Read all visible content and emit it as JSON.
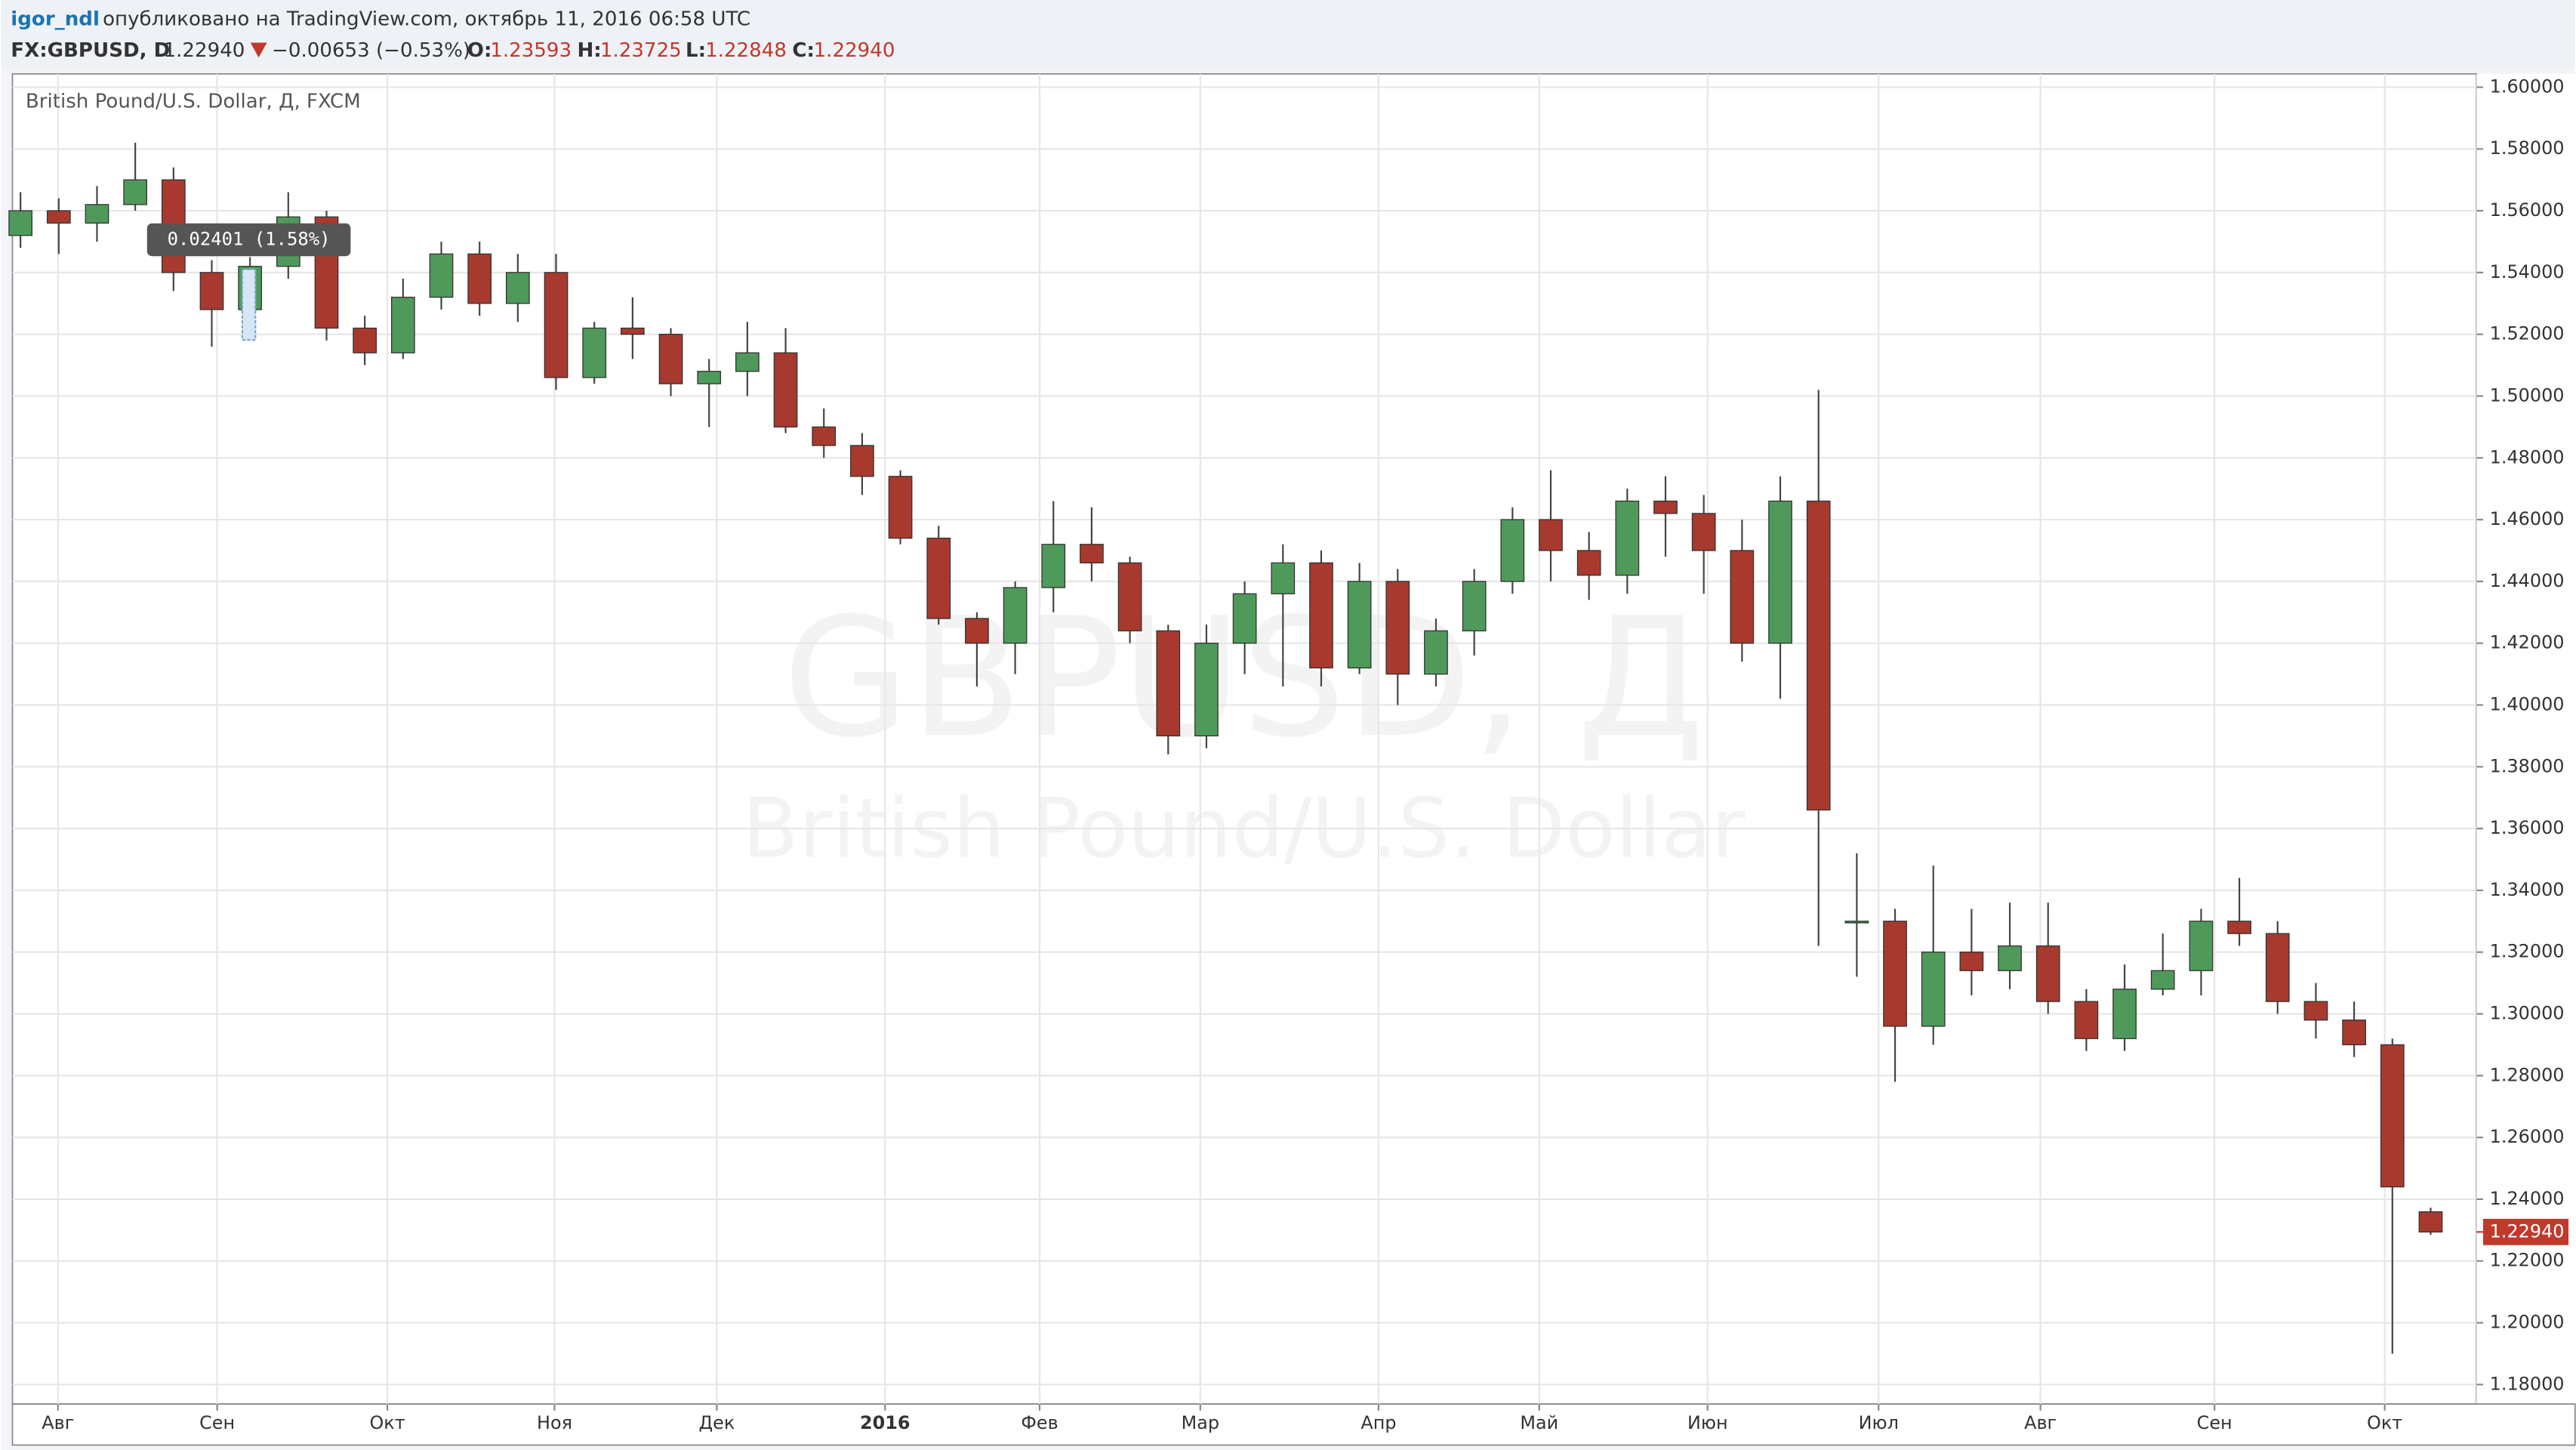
{
  "header": {
    "user": "igor_ndl",
    "published": "опубликовано на TradingView.com, октябрь 11, 2016 06:58 UTC",
    "symbol": "FX:GBPUSD, D",
    "price": "1.22940",
    "change": "−0.00653 (−0.53%)",
    "o_label": "O:",
    "o_value": "1.23593",
    "h_label": "H:",
    "h_value": "1.23725",
    "l_label": "L:",
    "l_value": "1.22848",
    "c_label": "C:",
    "c_value": "1.22940"
  },
  "chart_data": {
    "type": "candlestick",
    "title": "British Pound/U.S. Dollar, Д, FXCM",
    "watermark": "GBPUSD, Д",
    "watermark_sub": "British Pound/U.S. Dollar",
    "annotation": "0.02401 (1.58%)",
    "up_color": "#4f9a5b",
    "down_color": "#a8392e",
    "grid": true,
    "open": [
      1.552,
      1.56,
      1.556,
      1.562,
      1.57,
      1.54,
      1.528,
      1.542,
      1.558,
      1.522,
      1.514,
      1.532,
      1.546,
      1.53,
      1.54,
      1.506,
      1.522,
      1.52,
      1.504,
      1.508,
      1.514,
      1.49,
      1.484,
      1.474,
      1.454,
      1.428,
      1.42,
      1.438,
      1.452,
      1.446,
      1.424,
      1.39,
      1.42,
      1.436,
      1.446,
      1.412,
      1.44,
      1.41,
      1.424,
      1.44,
      1.46,
      1.45,
      1.442,
      1.466,
      1.462,
      1.45,
      1.42,
      1.466,
      1.33,
      1.33,
      1.296,
      1.32,
      1.314,
      1.322,
      1.304,
      1.292,
      1.308,
      1.314,
      1.33,
      1.326,
      1.304,
      1.298,
      1.29,
      1.23593
    ],
    "high": [
      1.566,
      1.564,
      1.568,
      1.582,
      1.574,
      1.544,
      1.545,
      1.566,
      1.56,
      1.526,
      1.538,
      1.55,
      1.55,
      1.546,
      1.546,
      1.524,
      1.532,
      1.522,
      1.512,
      1.524,
      1.522,
      1.496,
      1.488,
      1.476,
      1.458,
      1.43,
      1.44,
      1.466,
      1.464,
      1.448,
      1.426,
      1.426,
      1.44,
      1.452,
      1.45,
      1.446,
      1.444,
      1.428,
      1.444,
      1.464,
      1.476,
      1.456,
      1.47,
      1.474,
      1.468,
      1.46,
      1.474,
      1.502,
      1.352,
      1.334,
      1.348,
      1.334,
      1.336,
      1.336,
      1.308,
      1.316,
      1.326,
      1.334,
      1.344,
      1.33,
      1.31,
      1.304,
      1.292,
      1.23725
    ],
    "low": [
      1.548,
      1.546,
      1.55,
      1.56,
      1.534,
      1.516,
      1.524,
      1.538,
      1.518,
      1.51,
      1.512,
      1.528,
      1.526,
      1.524,
      1.502,
      1.504,
      1.512,
      1.5,
      1.49,
      1.5,
      1.488,
      1.48,
      1.468,
      1.452,
      1.426,
      1.406,
      1.41,
      1.43,
      1.44,
      1.42,
      1.384,
      1.386,
      1.41,
      1.406,
      1.406,
      1.41,
      1.4,
      1.406,
      1.416,
      1.436,
      1.44,
      1.434,
      1.436,
      1.448,
      1.436,
      1.414,
      1.402,
      1.322,
      1.312,
      1.278,
      1.29,
      1.306,
      1.308,
      1.3,
      1.288,
      1.288,
      1.306,
      1.306,
      1.322,
      1.3,
      1.292,
      1.286,
      1.19,
      1.22848
    ],
    "close": [
      1.56,
      1.556,
      1.562,
      1.57,
      1.54,
      1.528,
      1.542,
      1.558,
      1.522,
      1.514,
      1.532,
      1.546,
      1.53,
      1.54,
      1.506,
      1.522,
      1.52,
      1.504,
      1.508,
      1.514,
      1.49,
      1.484,
      1.474,
      1.454,
      1.428,
      1.42,
      1.438,
      1.452,
      1.446,
      1.424,
      1.39,
      1.42,
      1.436,
      1.446,
      1.412,
      1.44,
      1.41,
      1.424,
      1.44,
      1.46,
      1.45,
      1.442,
      1.466,
      1.462,
      1.45,
      1.42,
      1.466,
      1.366,
      1.33,
      1.296,
      1.32,
      1.314,
      1.322,
      1.304,
      1.292,
      1.308,
      1.314,
      1.33,
      1.326,
      1.304,
      1.298,
      1.29,
      1.244,
      1.2294
    ],
    "xlim": [
      -0.21,
      64.2
    ],
    "xticks": [
      {
        "value": 0.98,
        "label": "Авг"
      },
      {
        "value": 5.14,
        "label": "Сен"
      },
      {
        "value": 9.59,
        "label": "Окт"
      },
      {
        "value": 13.96,
        "label": "Ноя"
      },
      {
        "value": 18.2,
        "label": "Дек"
      },
      {
        "value": 22.6,
        "label": "2016"
      },
      {
        "value": 26.64,
        "label": "Фев"
      },
      {
        "value": 30.84,
        "label": "Мар"
      },
      {
        "value": 35.5,
        "label": "Апр"
      },
      {
        "value": 39.7,
        "label": "Май"
      },
      {
        "value": 44.1,
        "label": "Июн"
      },
      {
        "value": 48.57,
        "label": "Июл"
      },
      {
        "value": 52.8,
        "label": "Авг"
      },
      {
        "value": 57.35,
        "label": "Сен"
      },
      {
        "value": 61.8,
        "label": "Окт"
      }
    ],
    "ylim": [
      1.1737,
      1.6043
    ],
    "yticks": [
      {
        "value": 1.18,
        "label": "1.18000"
      },
      {
        "value": 1.2,
        "label": "1.20000"
      },
      {
        "value": 1.22,
        "label": "1.22000"
      },
      {
        "value": 1.24,
        "label": "1.24000"
      },
      {
        "value": 1.26,
        "label": "1.26000"
      },
      {
        "value": 1.28,
        "label": "1.28000"
      },
      {
        "value": 1.3,
        "label": "1.30000"
      },
      {
        "value": 1.32,
        "label": "1.32000"
      },
      {
        "value": 1.34,
        "label": "1.34000"
      },
      {
        "value": 1.36,
        "label": "1.36000"
      },
      {
        "value": 1.38,
        "label": "1.38000"
      },
      {
        "value": 1.4,
        "label": "1.40000"
      },
      {
        "value": 1.42,
        "label": "1.42000"
      },
      {
        "value": 1.44,
        "label": "1.44000"
      },
      {
        "value": 1.46,
        "label": "1.46000"
      },
      {
        "value": 1.48,
        "label": "1.48000"
      },
      {
        "value": 1.5,
        "label": "1.50000"
      },
      {
        "value": 1.52,
        "label": "1.52000"
      },
      {
        "value": 1.54,
        "label": "1.54000"
      },
      {
        "value": 1.56,
        "label": "1.56000"
      },
      {
        "value": 1.58,
        "label": "1.58000"
      },
      {
        "value": 1.6,
        "label": "1.60000"
      }
    ],
    "last_price": {
      "value": 1.2294,
      "label": "1.22940"
    }
  }
}
